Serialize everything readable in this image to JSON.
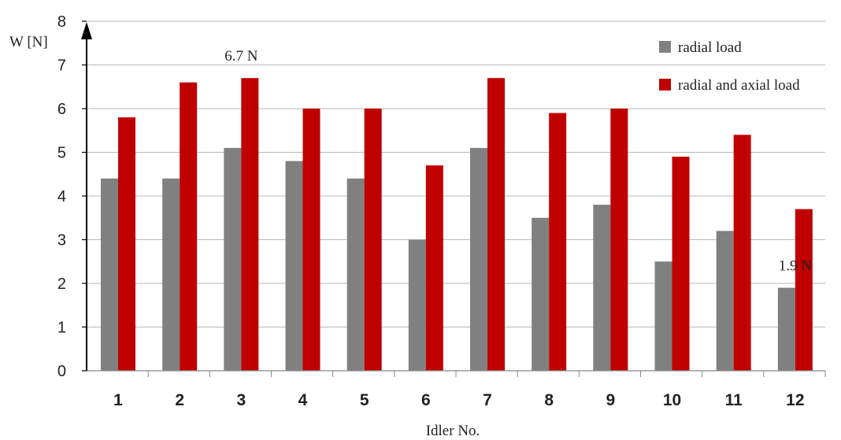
{
  "chart_data": {
    "type": "bar",
    "title": "",
    "xlabel": "Idler No.",
    "ylabel": "W [N]",
    "ylim": [
      0,
      8
    ],
    "yticks": [
      "0",
      "1",
      "2",
      "3",
      "4",
      "5",
      "6",
      "7",
      "8"
    ],
    "categories": [
      "1",
      "2",
      "3",
      "4",
      "5",
      "6",
      "7",
      "8",
      "9",
      "10",
      "11",
      "12"
    ],
    "series": [
      {
        "name": "radial load",
        "color": "#808080",
        "values": [
          4.4,
          4.4,
          5.1,
          4.8,
          4.4,
          3.0,
          5.1,
          3.5,
          3.8,
          2.5,
          3.2,
          1.9
        ]
      },
      {
        "name": "radial and axial load",
        "color": "#c00000",
        "values": [
          5.8,
          6.6,
          6.7,
          6.0,
          6.0,
          4.7,
          6.7,
          5.9,
          6.0,
          4.9,
          5.4,
          3.7
        ]
      }
    ],
    "grid": true,
    "legend_position": "top-right",
    "annotations": [
      {
        "text": "6.7 N",
        "category": "3",
        "value": 6.7
      },
      {
        "text": "1.9 N",
        "category": "12",
        "value": 1.9
      }
    ]
  }
}
